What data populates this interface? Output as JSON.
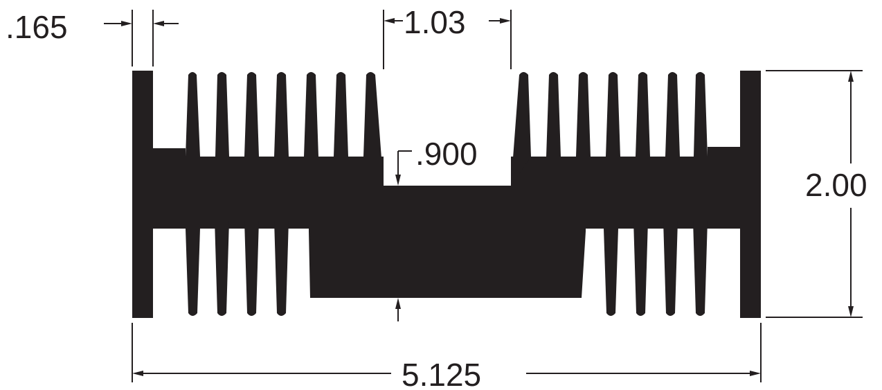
{
  "drawing": {
    "ink_color": "#231f20",
    "background_color": "#ffffff",
    "dimensions": {
      "fin_thickness": ".165",
      "channel_width": "1.03",
      "channel_depth": ".900",
      "overall_height": "2.00",
      "overall_width": "5.125"
    }
  }
}
